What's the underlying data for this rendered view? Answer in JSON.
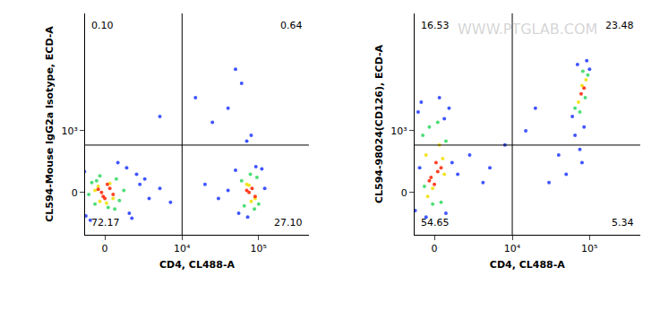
{
  "chart_data": [
    {
      "type": "scatter",
      "log": true,
      "x_label": "CD4, CL488-A",
      "y_label": "CL594-Mouse IgG2a Isotype, ECD-A",
      "xlim": [
        -1250,
        450000
      ],
      "ylim": [
        -385,
        300000
      ],
      "xticks": [
        0,
        {
          "value": 10000,
          "label": "10⁴"
        },
        {
          "value": 100000,
          "label": "10⁵"
        }
      ],
      "yticks": [
        0,
        {
          "value": 1000,
          "label": "10³"
        }
      ],
      "gate": {
        "x": 10000,
        "y": 494
      },
      "quadrant_labels": {
        "upper_left": "0.10",
        "upper_right": "0.64",
        "lower_left": "72.17",
        "lower_right": "27.10"
      },
      "series": [
        {
          "color": "#2038ff",
          "x": [
            -1300,
            1600,
            2500,
            1400,
            -1200,
            3500,
            5000,
            7000,
            2200,
            -900,
            800,
            3000,
            50000,
            120000,
            55000,
            110000,
            72000,
            92000,
            40000,
            30000,
            20000,
            40000,
            60000,
            25000,
            80000,
            15000,
            50000,
            70000,
            5000,
            -1500,
            1800
          ],
          "y": [
            120,
            -120,
            40,
            150,
            -140,
            -30,
            20,
            -50,
            100,
            -180,
            200,
            70,
            130,
            20,
            -120,
            140,
            -150,
            160,
            10,
            -30,
            40,
            3000,
            10000,
            1500,
            800,
            5000,
            20000,
            600,
            2000,
            -60,
            -160
          ]
        },
        {
          "color": "#30d860",
          "x": [
            -800,
            900,
            -600,
            700,
            200,
            -300,
            1200,
            -1000,
            600,
            -500,
            60000,
            100000,
            65000,
            95000,
            78000,
            88000
          ],
          "y": [
            50,
            -40,
            -60,
            70,
            -80,
            90,
            10,
            -10,
            -90,
            60,
            60,
            -60,
            -70,
            80,
            100,
            -90
          ]
        },
        {
          "color": "#f0e000",
          "x": [
            -400,
            500,
            300,
            -300,
            100,
            -600,
            70000,
            90000,
            80000,
            75000
          ],
          "y": [
            30,
            -30,
            45,
            -45,
            -55,
            10,
            40,
            -30,
            -45,
            35
          ]
        },
        {
          "color": "#ff2000",
          "x": [
            -200,
            300,
            0,
            500,
            -400,
            150,
            -100,
            75000,
            82000,
            90000,
            70000
          ],
          "y": [
            0,
            20,
            -30,
            -10,
            15,
            40,
            -20,
            0,
            20,
            -20,
            10
          ]
        }
      ]
    },
    {
      "type": "scatter",
      "log": true,
      "x_label": "CD4, CL488-A",
      "y_label": "CL594-98024(CD126), ECD-A",
      "xlim": [
        -1250,
        450000
      ],
      "ylim": [
        -385,
        300000
      ],
      "xticks": [
        0,
        {
          "value": 10000,
          "label": "10⁴"
        },
        {
          "value": 100000,
          "label": "10⁵"
        }
      ],
      "yticks": [
        0,
        {
          "value": 1000,
          "label": "10³"
        }
      ],
      "gate": {
        "x": 10000,
        "y": 494
      },
      "quadrant_labels": {
        "upper_left": "16.53",
        "upper_right": "23.48",
        "lower_left": "54.65",
        "lower_right": "5.34"
      },
      "watermark": "WWW.PTGLAB.COM",
      "series": [
        {
          "color": "#2038ff",
          "x": [
            -1000,
            900,
            -800,
            1100,
            -500,
            300,
            1500,
            2500,
            4000,
            -1200,
            600,
            60000,
            100000,
            70000,
            85000,
            92000,
            75000,
            80000,
            50000,
            65000,
            20000,
            30000,
            8000,
            15000,
            5000,
            40000,
            -900,
            700
          ],
          "y": [
            2500,
            3000,
            4000,
            200,
            -150,
            5000,
            100,
            300,
            50,
            -100,
            1800,
            2000,
            20000,
            25000,
            1200,
            30000,
            400,
            200,
            100,
            800,
            3000,
            50,
            500,
            1000,
            150,
            300,
            150,
            -120
          ]
        },
        {
          "color": "#30d860",
          "x": [
            -700,
            700,
            -300,
            400,
            -600,
            200,
            -100,
            65000,
            95000,
            75000,
            88000,
            82000
          ],
          "y": [
            800,
            600,
            1200,
            -50,
            30,
            1500,
            -60,
            3000,
            15000,
            2500,
            5000,
            18000
          ]
        },
        {
          "color": "#f0e000",
          "x": [
            -500,
            500,
            -100,
            300,
            -400,
            600,
            72000,
            90000,
            80000
          ],
          "y": [
            300,
            250,
            20,
            500,
            -20,
            100,
            4000,
            12000,
            9000
          ]
        },
        {
          "color": "#ff2000",
          "x": [
            -200,
            200,
            0,
            400,
            -300,
            100,
            78000,
            85000
          ],
          "y": [
            80,
            120,
            40,
            150,
            60,
            200,
            6000,
            8000
          ]
        }
      ]
    }
  ]
}
